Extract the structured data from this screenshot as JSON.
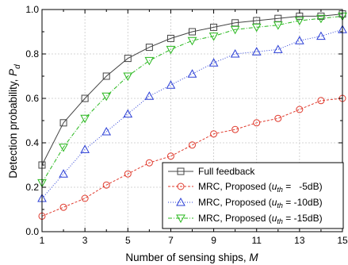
{
  "chart_data": {
    "type": "line",
    "xlabel": "Number of sensing ships, M",
    "ylabel": "Detection probability, P_d",
    "xlim": [
      1,
      15
    ],
    "ylim": [
      0.0,
      1.0
    ],
    "xticks": [
      1,
      3,
      5,
      7,
      9,
      11,
      13,
      15
    ],
    "xticks_minor": [
      2,
      4,
      6,
      8,
      10,
      12,
      14
    ],
    "yticks": [
      0.0,
      0.2,
      0.4,
      0.6,
      0.8,
      1.0
    ],
    "grid": true,
    "legend_position": "bottom-right",
    "x": [
      1,
      2,
      3,
      4,
      5,
      6,
      7,
      8,
      9,
      10,
      11,
      12,
      13,
      14,
      15
    ],
    "series": [
      {
        "name": "Full feedback",
        "color": "#444444",
        "marker": "square",
        "line": "solid",
        "values": [
          0.3,
          0.49,
          0.6,
          0.7,
          0.78,
          0.83,
          0.87,
          0.9,
          0.92,
          0.94,
          0.95,
          0.96,
          0.97,
          0.97,
          0.98
        ]
      },
      {
        "name": "MRC, Proposed (u_th = -5dB)",
        "color": "#e03b2e",
        "marker": "circle",
        "line": "dashed",
        "values": [
          0.07,
          0.11,
          0.15,
          0.21,
          0.26,
          0.31,
          0.34,
          0.39,
          0.44,
          0.46,
          0.49,
          0.51,
          0.55,
          0.59,
          0.6
        ]
      },
      {
        "name": "MRC, Proposed (u_th = -10dB)",
        "color": "#2b3fd6",
        "marker": "triangle-up",
        "line": "dotted",
        "values": [
          0.15,
          0.26,
          0.37,
          0.45,
          0.53,
          0.61,
          0.66,
          0.71,
          0.76,
          0.8,
          0.81,
          0.82,
          0.86,
          0.88,
          0.91
        ]
      },
      {
        "name": "MRC, Proposed (u_th = -15dB)",
        "color": "#29b81e",
        "marker": "triangle-down",
        "line": "dashdot",
        "values": [
          0.22,
          0.38,
          0.51,
          0.61,
          0.7,
          0.77,
          0.82,
          0.86,
          0.88,
          0.91,
          0.92,
          0.93,
          0.95,
          0.96,
          0.97
        ]
      }
    ],
    "legend": [
      {
        "prefix": "Full feedback",
        "sub": "",
        "suffix": ""
      },
      {
        "prefix": "MRC, Proposed (u",
        "sub": "th",
        "suffix": " =   -5dB)"
      },
      {
        "prefix": "MRC, Proposed (u",
        "sub": "th",
        "suffix": " = -10dB)"
      },
      {
        "prefix": "MRC, Proposed (u",
        "sub": "th",
        "suffix": " = -15dB)"
      }
    ]
  }
}
